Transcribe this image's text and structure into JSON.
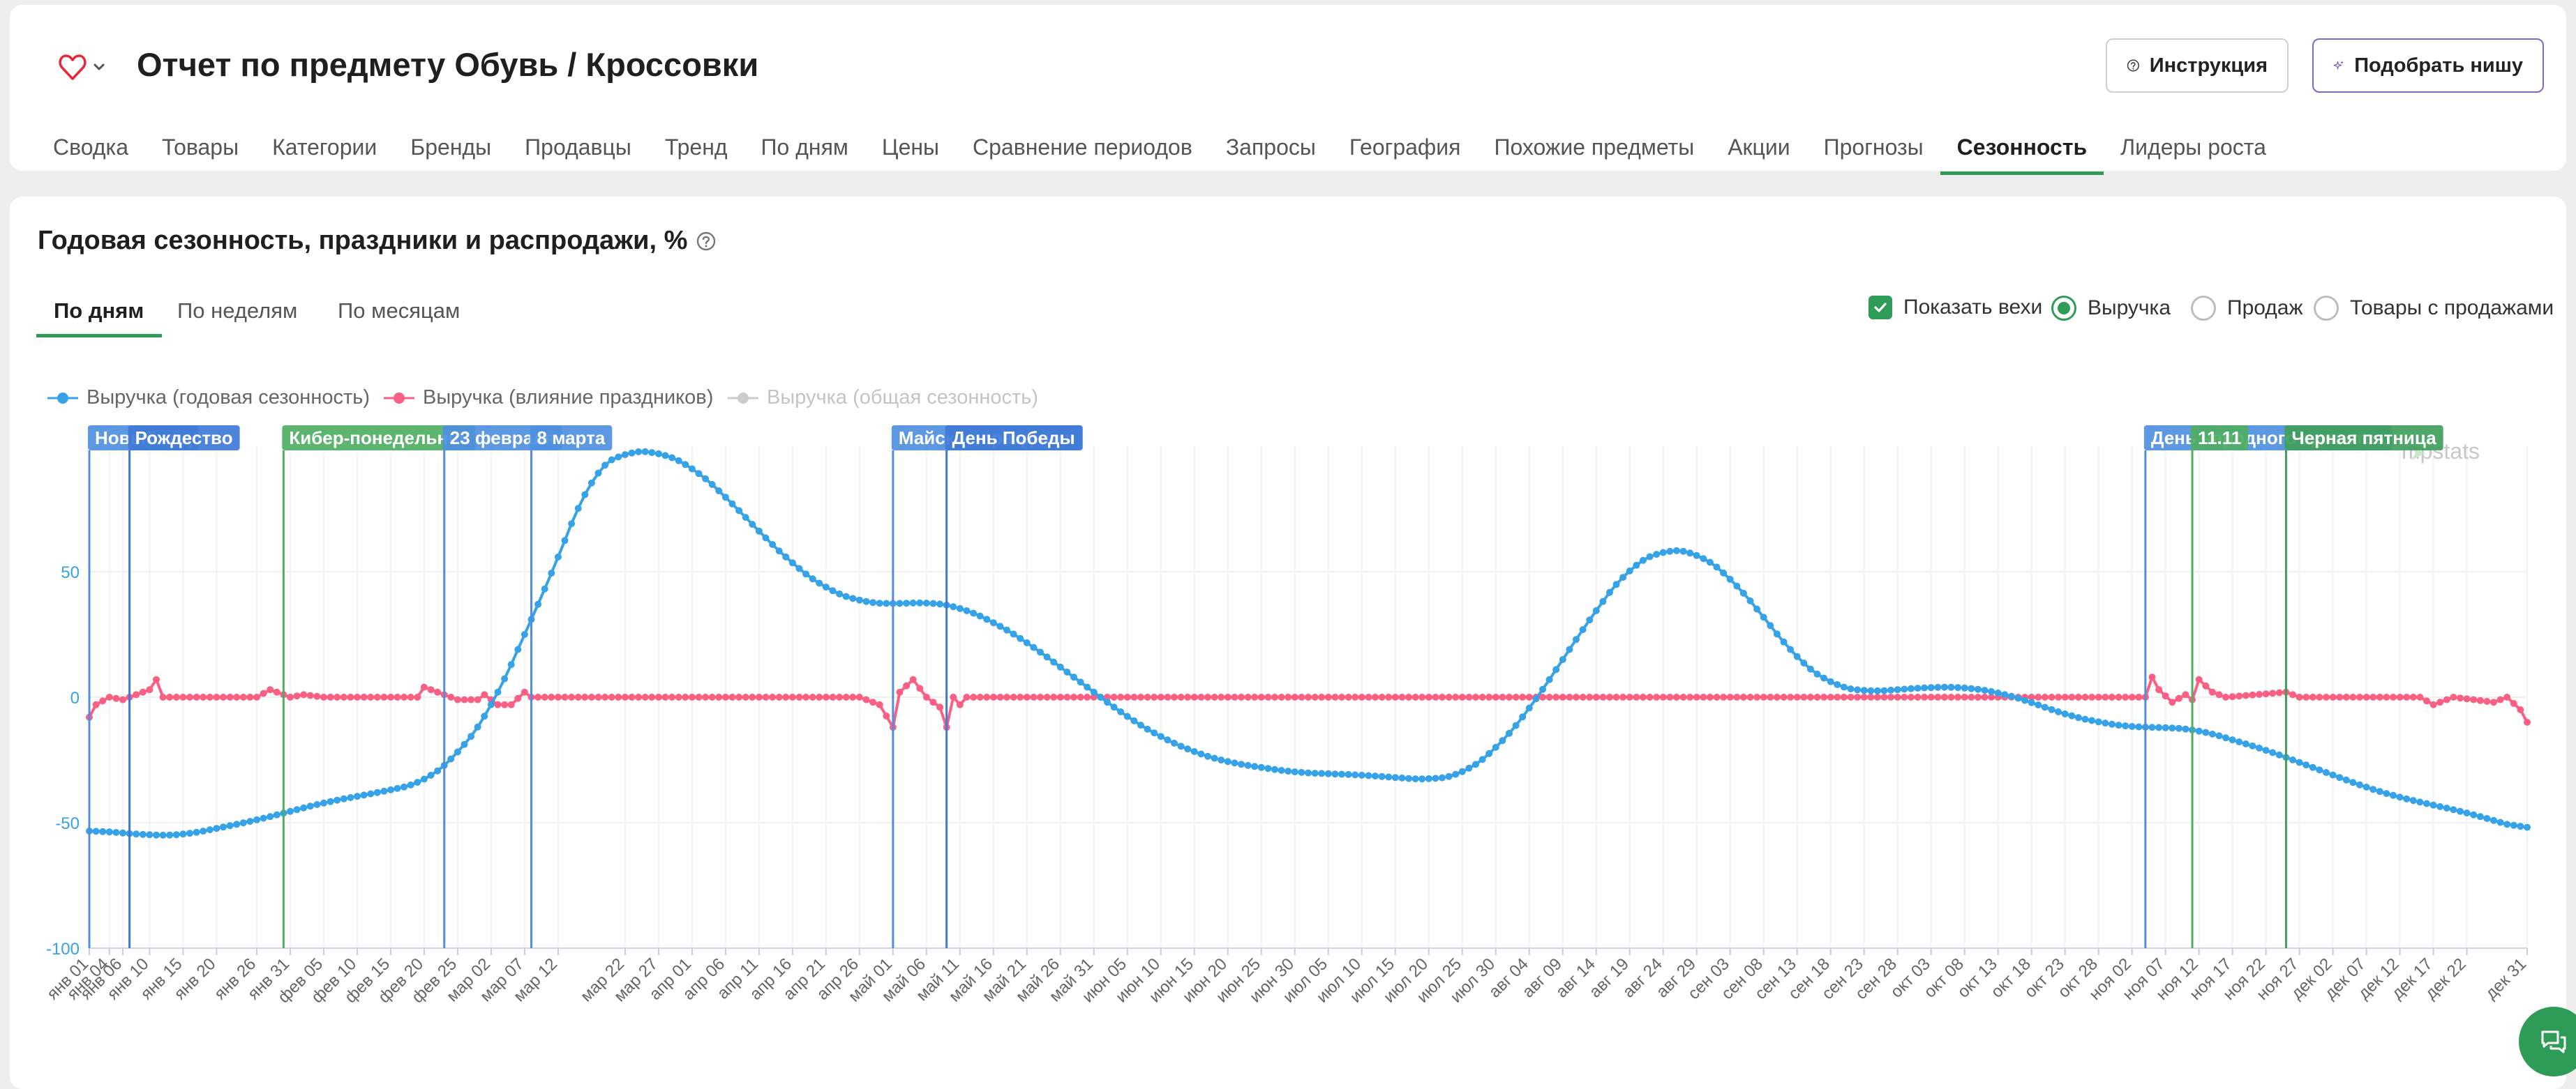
{
  "header": {
    "title": "Отчет по предмету Обувь / Кроссовки",
    "help_button": "Инструкция",
    "niche_button": "Подобрать нишу"
  },
  "tabs": [
    "Сводка",
    "Товары",
    "Категории",
    "Бренды",
    "Продавцы",
    "Тренд",
    "По дням",
    "Цены",
    "Сравнение периодов",
    "Запросы",
    "География",
    "Похожие предметы",
    "Акции",
    "Прогнозы",
    "Сезонность",
    "Лидеры роста"
  ],
  "active_tab": "Сезонность",
  "section": {
    "title": "Годовая сезонность, праздники и распродажи, %",
    "subtabs": [
      "По дням",
      "По неделям",
      "По месяцам"
    ],
    "active_subtab": "По дням",
    "show_milestones": "Показать вехи",
    "metric_options": [
      "Выручка",
      "Продаж",
      "Товары с продажами"
    ],
    "selected_metric": "Выручка"
  },
  "watermark": "mpstats",
  "colors": {
    "accent": "#2e9b57",
    "seasonal": "#36a2e7",
    "holiday": "#fa5f84",
    "overall": "#cccccc",
    "milestone_blue": "#4f8fe0",
    "milestone_green": "#4fae62",
    "niche_purple": "#7c65d6"
  },
  "chart_data": {
    "type": "line",
    "title": "Годовая сезонность, праздники и распродажи, %",
    "xlabel": "",
    "ylabel": "",
    "ylim": [
      -100,
      100
    ],
    "yticks": [
      -100,
      -50,
      0,
      50
    ],
    "x_range": [
      "янв 01",
      "дек 31"
    ],
    "x_ticks": [
      "янв 01",
      "янв 04",
      "янв 06",
      "янв 10",
      "янв 15",
      "янв 20",
      "янв 26",
      "янв 31",
      "фев 05",
      "фев 10",
      "фев 15",
      "фев 20",
      "фев 25",
      "мар 02",
      "мар 07",
      "мар 12",
      "мар 22",
      "мар 27",
      "апр 01",
      "апр 06",
      "апр 11",
      "апр 16",
      "апр 21",
      "апр 26",
      "май 01",
      "май 06",
      "май 11",
      "май 16",
      "май 21",
      "май 26",
      "май 31",
      "июн 05",
      "июн 10",
      "июн 15",
      "июн 20",
      "июн 25",
      "июн 30",
      "июл 05",
      "июл 10",
      "июл 15",
      "июл 20",
      "июл 25",
      "июл 30",
      "авг 04",
      "авг 09",
      "авг 14",
      "авг 19",
      "авг 24",
      "авг 29",
      "сен 03",
      "сен 08",
      "сен 13",
      "сен 18",
      "сен 23",
      "сен 28",
      "окт 03",
      "окт 08",
      "окт 13",
      "окт 18",
      "окт 23",
      "окт 28",
      "ноя 02",
      "ноя 07",
      "ноя 12",
      "ноя 17",
      "ноя 22",
      "ноя 27",
      "дек 02",
      "дек 07",
      "дек 12",
      "дек 17",
      "дек 22",
      "дек 31"
    ],
    "series": [
      {
        "name": "Выручка (годовая сезонность)",
        "color": "#36a2e7",
        "points": [
          [
            "янв 01",
            -53
          ],
          [
            "янв 10",
            -55
          ],
          [
            "янв 15",
            -55
          ],
          [
            "янв 26",
            -49
          ],
          [
            "фев 05",
            -42
          ],
          [
            "фев 15",
            -37
          ],
          [
            "фев 20",
            -34
          ],
          [
            "фев 25",
            -23
          ],
          [
            "мар 02",
            -5
          ],
          [
            "мар 07",
            25
          ],
          [
            "мар 12",
            55
          ],
          [
            "мар 17",
            90
          ],
          [
            "мар 22",
            98
          ],
          [
            "мар 27",
            98
          ],
          [
            "апр 01",
            92
          ],
          [
            "апр 06",
            80
          ],
          [
            "апр 11",
            66
          ],
          [
            "апр 16",
            53
          ],
          [
            "апр 21",
            43
          ],
          [
            "апр 26",
            38
          ],
          [
            "май 01",
            37
          ],
          [
            "май 06",
            38
          ],
          [
            "май 11",
            36
          ],
          [
            "май 16",
            30
          ],
          [
            "май 21",
            22
          ],
          [
            "май 26",
            12
          ],
          [
            "май 31",
            2
          ],
          [
            "июн 05",
            -8
          ],
          [
            "июн 10",
            -16
          ],
          [
            "июн 15",
            -22
          ],
          [
            "июн 20",
            -26
          ],
          [
            "июн 25",
            -28
          ],
          [
            "июн 30",
            -30
          ],
          [
            "июл 10",
            -31
          ],
          [
            "июл 20",
            -33
          ],
          [
            "июл 25",
            -31
          ],
          [
            "июл 30",
            -21
          ],
          [
            "авг 04",
            -5
          ],
          [
            "авг 09",
            15
          ],
          [
            "авг 14",
            35
          ],
          [
            "авг 19",
            52
          ],
          [
            "авг 24",
            59
          ],
          [
            "авг 29",
            58
          ],
          [
            "сен 03",
            48
          ],
          [
            "сен 08",
            32
          ],
          [
            "сен 13",
            15
          ],
          [
            "сен 18",
            5
          ],
          [
            "сен 23",
            2
          ],
          [
            "окт 03",
            4
          ],
          [
            "окт 08",
            4
          ],
          [
            "окт 13",
            2
          ],
          [
            "окт 18",
            -2
          ],
          [
            "окт 23",
            -7
          ],
          [
            "окт 28",
            -10
          ],
          [
            "ноя 02",
            -12
          ],
          [
            "ноя 07",
            -12
          ],
          [
            "ноя 12",
            -13
          ],
          [
            "ноя 17",
            -17
          ],
          [
            "ноя 22",
            -21
          ],
          [
            "ноя 27",
            -26
          ],
          [
            "дек 02",
            -31
          ],
          [
            "дек 07",
            -36
          ],
          [
            "дек 12",
            -40
          ],
          [
            "дек 17",
            -43
          ],
          [
            "дек 22",
            -46
          ],
          [
            "дек 31",
            -53
          ]
        ]
      },
      {
        "name": "Выручка (влияние праздников)",
        "color": "#fa5f84",
        "points": [
          [
            "янв 01",
            -8
          ],
          [
            "янв 02",
            -3
          ],
          [
            "янв 04",
            0
          ],
          [
            "янв 06",
            -1
          ],
          [
            "янв 08",
            1
          ],
          [
            "янв 10",
            3
          ],
          [
            "янв 11",
            7
          ],
          [
            "янв 12",
            0
          ],
          [
            "янв 26",
            0
          ],
          [
            "янв 28",
            3
          ],
          [
            "янв 31",
            0
          ],
          [
            "фев 02",
            1
          ],
          [
            "фев 05",
            0
          ],
          [
            "фев 19",
            0
          ],
          [
            "фев 20",
            4
          ],
          [
            "фев 23",
            1
          ],
          [
            "фев 25",
            -1
          ],
          [
            "фев 28",
            -1
          ],
          [
            "мар 01",
            1
          ],
          [
            "мар 03",
            -3
          ],
          [
            "мар 05",
            -3
          ],
          [
            "мар 07",
            2
          ],
          [
            "мар 08",
            0
          ],
          [
            "апр 26",
            0
          ],
          [
            "апр 29",
            -3
          ],
          [
            "май 01",
            -12
          ],
          [
            "май 02",
            2
          ],
          [
            "май 04",
            7
          ],
          [
            "май 06",
            0
          ],
          [
            "май 08",
            -4
          ],
          [
            "май 09",
            -12
          ],
          [
            "май 10",
            0
          ],
          [
            "май 11",
            -3
          ],
          [
            "май 12",
            0
          ],
          [
            "ноя 04",
            0
          ],
          [
            "ноя 05",
            8
          ],
          [
            "ноя 06",
            3
          ],
          [
            "ноя 08",
            -2
          ],
          [
            "ноя 10",
            1
          ],
          [
            "ноя 11",
            -1
          ],
          [
            "ноя 12",
            7
          ],
          [
            "ноя 14",
            2
          ],
          [
            "ноя 16",
            0
          ],
          [
            "ноя 25",
            2
          ],
          [
            "ноя 27",
            0
          ],
          [
            "дек 15",
            0
          ],
          [
            "дек 17",
            -3
          ],
          [
            "дек 20",
            0
          ],
          [
            "дек 26",
            -2
          ],
          [
            "дек 28",
            0
          ],
          [
            "дек 30",
            -5
          ],
          [
            "дек 31",
            -10
          ]
        ]
      },
      {
        "name": "Выручка (общая сезонность)",
        "color": "#cccccc",
        "visible": false,
        "points": []
      }
    ],
    "milestones": [
      {
        "label": "Новый год",
        "date": "янв 01",
        "color": "#4f8fe0"
      },
      {
        "label": "Рождество",
        "date": "янв 07",
        "color": "#3f79d8"
      },
      {
        "label": "Кибер-понедельник",
        "date": "янв 30",
        "color": "#4fae62"
      },
      {
        "label": "23 февраля",
        "date": "фев 23",
        "color": "#4f8fe0"
      },
      {
        "label": "8 марта",
        "date": "мар 08",
        "color": "#4f8fe0"
      },
      {
        "label": "Майские праздники",
        "date": "май 01",
        "color": "#4f8fe0"
      },
      {
        "label": "День Победы",
        "date": "май 09",
        "color": "#3f79d8"
      },
      {
        "label": "День народного единства",
        "date": "ноя 04",
        "color": "#4f8fe0"
      },
      {
        "label": "11.11",
        "date": "ноя 11",
        "color": "#4fae62"
      },
      {
        "label": "Черная пятница",
        "date": "ноя 25",
        "color": "#3fa05b"
      }
    ],
    "legend": "top-left",
    "grid": true
  }
}
